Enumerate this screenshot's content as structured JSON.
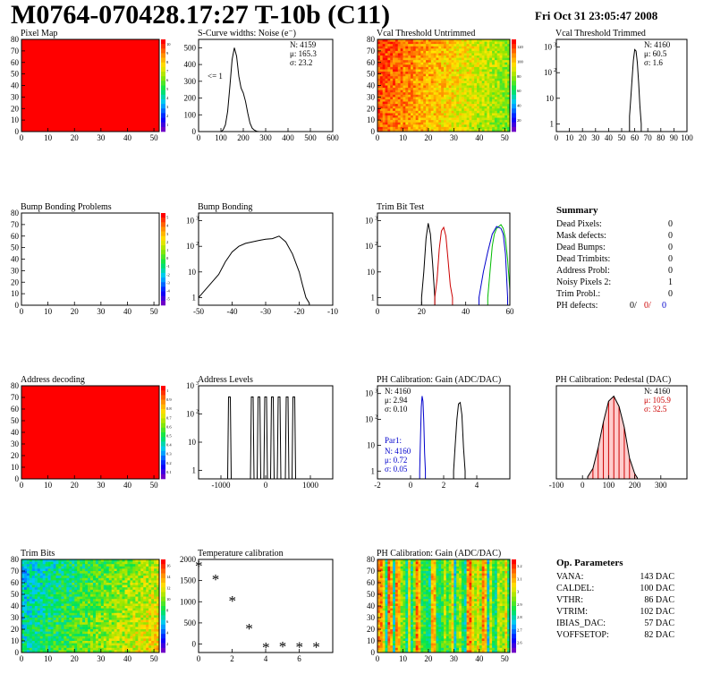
{
  "header": {
    "title": "M0764-070428.17:27 T-10b (C11)",
    "date": "Fri Oct 31 23:05:47 2008"
  },
  "chart_data": [
    {
      "id": "pixel_map",
      "type": "heatmap",
      "title": "Pixel Map",
      "xlim": [
        0,
        52
      ],
      "ylim": [
        0,
        80
      ],
      "xticks": [
        0,
        10,
        20,
        30,
        40,
        50
      ],
      "yticks": [
        0,
        10,
        20,
        30,
        40,
        50,
        60,
        70,
        80
      ],
      "fill": "uniform-max",
      "zlim": [
        0,
        10
      ],
      "palette_ticks": [
        "10",
        "9",
        "8",
        "7",
        "6",
        "5",
        "4",
        "3",
        "2",
        "1"
      ]
    },
    {
      "id": "scurve_widths",
      "type": "line",
      "title": "S-Curve widths: Noise (e⁻)",
      "xlim": [
        0,
        600
      ],
      "ylim": [
        0,
        550
      ],
      "xticks": [
        0,
        100,
        200,
        300,
        400,
        500,
        600
      ],
      "yticks": [
        0,
        100,
        200,
        300,
        400,
        500
      ],
      "stats": [
        "N: 4159",
        "μ: 165.3",
        "σ: 23.2"
      ],
      "annotation": "<= 1",
      "x": [
        100,
        110,
        120,
        130,
        140,
        150,
        160,
        170,
        180,
        190,
        200,
        210,
        220,
        230,
        240,
        250,
        260,
        270
      ],
      "y": [
        0,
        10,
        40,
        120,
        270,
        430,
        500,
        450,
        330,
        260,
        230,
        180,
        110,
        50,
        20,
        8,
        2,
        0
      ]
    },
    {
      "id": "vcal_untrimmed",
      "type": "heatmap",
      "title": "Vcal Threshold Untrimmed",
      "xlim": [
        0,
        52
      ],
      "ylim": [
        0,
        80
      ],
      "xticks": [
        0,
        10,
        20,
        30,
        40,
        50
      ],
      "yticks": [
        0,
        10,
        20,
        30,
        40,
        50,
        60,
        70,
        80
      ],
      "fill": "gradient-left-high",
      "zlim": [
        0,
        140
      ],
      "palette_ticks": [
        "120",
        "100",
        "80",
        "60",
        "40",
        "20"
      ]
    },
    {
      "id": "vcal_trimmed",
      "type": "line",
      "title": "Vcal Threshold Trimmed",
      "xlim": [
        0,
        100
      ],
      "ylim": [
        0.5,
        2000
      ],
      "yscale": "log",
      "xticks": [
        0,
        10,
        20,
        30,
        40,
        50,
        60,
        70,
        80,
        90,
        100
      ],
      "stats": [
        "N: 4160",
        "μ: 60.5",
        "σ: 1.6"
      ],
      "x": [
        56,
        57,
        58,
        59,
        60,
        61,
        62,
        63,
        64,
        65
      ],
      "y": [
        2,
        10,
        60,
        300,
        800,
        700,
        250,
        40,
        5,
        1
      ]
    },
    {
      "id": "bump_bonding_problems",
      "type": "heatmap",
      "title": "Bump Bonding Problems",
      "xlim": [
        0,
        52
      ],
      "ylim": [
        0,
        80
      ],
      "xticks": [
        0,
        10,
        20,
        30,
        40,
        50
      ],
      "yticks": [
        0,
        10,
        20,
        30,
        40,
        50,
        60,
        70,
        80
      ],
      "fill": "empty",
      "zlim": [
        -5,
        5
      ],
      "palette_ticks": [
        "5",
        "4",
        "3",
        "2",
        "1",
        "0",
        "-1",
        "-2",
        "-3",
        "-4",
        "-5"
      ]
    },
    {
      "id": "bump_bonding",
      "type": "line",
      "title": "Bump Bonding",
      "xlim": [
        -50,
        -10
      ],
      "ylim": [
        0.5,
        2000
      ],
      "yscale": "log",
      "xticks": [
        -50,
        -40,
        -30,
        -20,
        -10
      ],
      "x": [
        -50,
        -48,
        -46,
        -44,
        -42,
        -40,
        -38,
        -36,
        -34,
        -32,
        -30,
        -28,
        -26,
        -24,
        -22,
        -20,
        -19,
        -18,
        -17
      ],
      "y": [
        1,
        2,
        4,
        8,
        25,
        60,
        100,
        130,
        150,
        170,
        190,
        200,
        250,
        150,
        50,
        10,
        3,
        1,
        0.6
      ]
    },
    {
      "id": "trim_bit_test",
      "type": "line",
      "title": "Trim Bit Test",
      "xlim": [
        0,
        60
      ],
      "ylim": [
        0.5,
        2000
      ],
      "yscale": "log",
      "xticks": [
        0,
        20,
        40,
        60
      ],
      "series": [
        {
          "color": "#000000",
          "x": [
            20,
            21,
            22,
            23,
            24,
            25,
            26
          ],
          "y": [
            1,
            10,
            200,
            800,
            300,
            20,
            1
          ]
        },
        {
          "color": "#cc0000",
          "x": [
            26,
            27,
            28,
            29,
            30,
            31,
            32,
            33,
            34
          ],
          "y": [
            1,
            5,
            80,
            400,
            550,
            250,
            30,
            3,
            1
          ]
        },
        {
          "color": "#00bb00",
          "x": [
            50,
            51,
            52,
            53,
            54,
            55,
            56,
            57,
            58,
            59,
            60
          ],
          "y": [
            1,
            10,
            100,
            300,
            500,
            600,
            700,
            500,
            200,
            30,
            2
          ]
        },
        {
          "color": "#0000cc",
          "x": [
            46,
            48,
            50,
            52,
            54,
            56,
            57,
            58,
            59
          ],
          "y": [
            1,
            10,
            60,
            300,
            600,
            500,
            300,
            50,
            1
          ]
        }
      ]
    },
    {
      "id": "address_decoding",
      "type": "heatmap",
      "title": "Address decoding",
      "xlim": [
        0,
        52
      ],
      "ylim": [
        0,
        80
      ],
      "xticks": [
        0,
        10,
        20,
        30,
        40,
        50
      ],
      "yticks": [
        0,
        10,
        20,
        30,
        40,
        50,
        60,
        70,
        80
      ],
      "fill": "uniform-max",
      "zlim": [
        0,
        1
      ],
      "palette_ticks": [
        "1",
        "0.9",
        "0.8",
        "0.7",
        "0.6",
        "0.5",
        "0.4",
        "0.3",
        "0.2",
        "0.1"
      ]
    },
    {
      "id": "address_levels",
      "type": "line",
      "title": "Address Levels",
      "xlim": [
        -1500,
        1500
      ],
      "ylim": [
        0.5,
        1000
      ],
      "yscale": "log",
      "xticks": [
        -1000,
        0,
        1000
      ],
      "peaks": [
        -810,
        -300,
        -150,
        0,
        150,
        300,
        480,
        630
      ],
      "peak_height": 400
    },
    {
      "id": "ph_gain",
      "type": "line",
      "title": "PH Calibration: Gain (ADC/DAC)",
      "xlim": [
        -2,
        6
      ],
      "ylim": [
        0.5,
        2000
      ],
      "yscale": "log",
      "xticks": [
        -2,
        0,
        2,
        4
      ],
      "stats": [
        "N: 4160",
        "μ: 2.94",
        "σ: 0.10"
      ],
      "par1_label": "Par1:",
      "par1_stats": [
        "N: 4160",
        "μ: 0.72",
        "σ: 0.05"
      ],
      "series": [
        {
          "color": "#000000",
          "x": [
            2.6,
            2.7,
            2.8,
            2.9,
            3.0,
            3.1,
            3.2,
            3.3
          ],
          "y": [
            1,
            10,
            100,
            400,
            450,
            150,
            8,
            1
          ]
        },
        {
          "color": "#0000cc",
          "x": [
            0.55,
            0.6,
            0.65,
            0.7,
            0.75,
            0.8,
            0.85,
            0.9
          ],
          "y": [
            1,
            20,
            300,
            800,
            500,
            80,
            5,
            1
          ]
        }
      ]
    },
    {
      "id": "ph_pedestal",
      "type": "line",
      "title": "PH Calibration: Pedestal (DAC)",
      "xlim": [
        -100,
        400
      ],
      "ylim": [
        0,
        90
      ],
      "xticks": [
        -100,
        0,
        100,
        200,
        300
      ],
      "stats": [
        "N: 4160",
        "μ: 105.9",
        "σ: 32.5"
      ],
      "x": [
        20,
        40,
        60,
        80,
        100,
        120,
        140,
        160,
        180,
        200,
        210
      ],
      "y": [
        2,
        10,
        30,
        55,
        75,
        80,
        70,
        50,
        20,
        5,
        1
      ]
    },
    {
      "id": "trim_bits",
      "type": "heatmap",
      "title": "Trim Bits",
      "xlim": [
        0,
        52
      ],
      "ylim": [
        0,
        80
      ],
      "xticks": [
        0,
        10,
        20,
        30,
        40,
        50
      ],
      "yticks": [
        0,
        10,
        20,
        30,
        40,
        50,
        60,
        70,
        80
      ],
      "fill": "gradient-right-high",
      "zlim": [
        0,
        16
      ],
      "palette_ticks": [
        "16",
        "14",
        "12",
        "10",
        "8",
        "6",
        "4",
        "2"
      ]
    },
    {
      "id": "temperature_calibration",
      "type": "scatter",
      "title": "Temperature calibration",
      "xlim": [
        0,
        8
      ],
      "ylim": [
        -200,
        2000
      ],
      "xticks": [
        0,
        2,
        4,
        6
      ],
      "yticks": [
        0,
        500,
        1000,
        1500,
        2000
      ],
      "x": [
        0,
        1,
        2,
        3,
        4,
        5,
        6,
        7
      ],
      "y": [
        1850,
        1530,
        1030,
        370,
        -70,
        -50,
        -60,
        -60
      ]
    },
    {
      "id": "ph_gain_map",
      "type": "heatmap",
      "title": "PH Calibration: Gain (ADC/DAC)",
      "xlim": [
        0,
        52
      ],
      "ylim": [
        0,
        80
      ],
      "xticks": [
        0,
        10,
        20,
        30,
        40,
        50
      ],
      "yticks": [
        0,
        10,
        20,
        30,
        40,
        50,
        60,
        70,
        80
      ],
      "fill": "columns",
      "zlim": [
        2.5,
        3.3
      ],
      "palette_ticks": [
        "3.2",
        "3.1",
        "3",
        "2.9",
        "2.8",
        "2.7",
        "2.6"
      ]
    }
  ],
  "summary": {
    "title": "Summary",
    "rows": [
      {
        "label": "Dead Pixels:",
        "value": "0"
      },
      {
        "label": "Mask defects:",
        "value": "0"
      },
      {
        "label": "Dead Bumps:",
        "value": "0"
      },
      {
        "label": "Dead Trimbits:",
        "value": "0"
      },
      {
        "label": "Address Probl:",
        "value": "0"
      },
      {
        "label": "Noisy Pixels 2:",
        "value": "1"
      },
      {
        "label": "Trim Probl.:",
        "value": "0"
      }
    ],
    "ph_defects": {
      "label": "PH defects:",
      "v1": "0/",
      "v2": "0/",
      "v3": "0",
      "c1": "#000000",
      "c2": "#cc0000",
      "c3": "#0000cc"
    }
  },
  "op_params": {
    "title": "Op. Parameters",
    "rows": [
      {
        "label": "VANA:",
        "value": "143 DAC"
      },
      {
        "label": "CALDEL:",
        "value": "100 DAC"
      },
      {
        "label": "VTHR:",
        "value": "86 DAC"
      },
      {
        "label": "VTRIM:",
        "value": "102 DAC"
      },
      {
        "label": "IBIAS_DAC:",
        "value": "57 DAC"
      },
      {
        "label": "VOFFSETOP:",
        "value": "82 DAC"
      }
    ]
  }
}
